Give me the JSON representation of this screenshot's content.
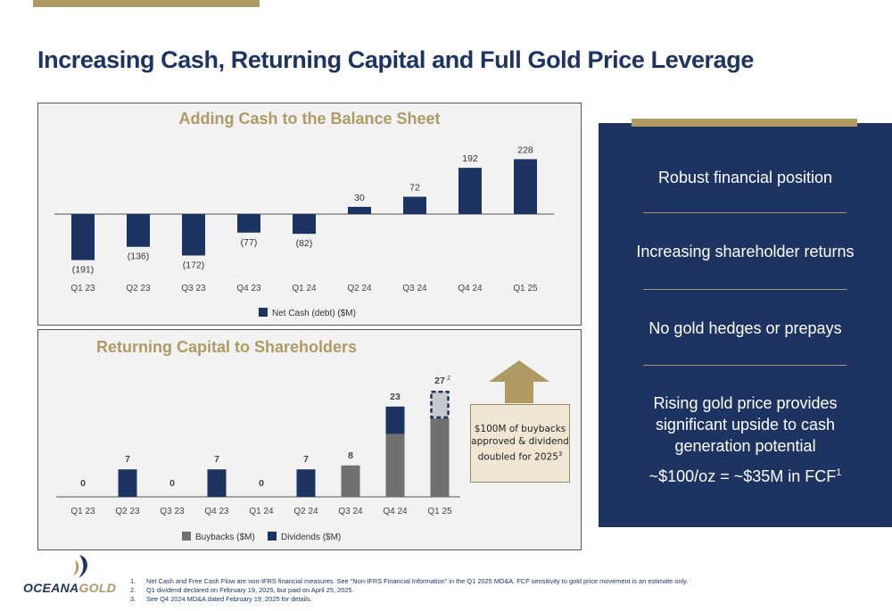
{
  "title": "Increasing Cash, Returning Capital and Full Gold Price Leverage",
  "colors": {
    "navy": "#1d3462",
    "gold": "#b09a64",
    "gray": "#707070"
  },
  "chart_data": [
    {
      "type": "bar",
      "title": "Adding Cash to the Balance Sheet",
      "categories": [
        "Q1 23",
        "Q2 23",
        "Q3 23",
        "Q4 23",
        "Q1 24",
        "Q2 24",
        "Q3 24",
        "Q4 24",
        "Q1 25"
      ],
      "series": [
        {
          "name": "Net Cash (debt) ($M)",
          "values": [
            -191,
            -136,
            -172,
            -77,
            -82,
            30,
            72,
            192,
            228
          ]
        }
      ],
      "value_labels": [
        "(191)",
        "(136)",
        "(172)",
        "(77)",
        "(82)",
        "30",
        "72",
        "192",
        "228"
      ],
      "legend": "bottom",
      "grid": false
    },
    {
      "type": "bar",
      "stacked": true,
      "title": "Returning Capital to Shareholders",
      "categories": [
        "Q1 23",
        "Q2 23",
        "Q3 23",
        "Q4 23",
        "Q1 24",
        "Q2 24",
        "Q3 24",
        "Q4 24",
        "Q1 25"
      ],
      "series": [
        {
          "name": "Buybacks ($M)",
          "values": [
            0,
            0,
            0,
            0,
            0,
            0,
            8,
            16,
            20
          ]
        },
        {
          "name": "Dividends ($M)",
          "values": [
            0,
            7,
            0,
            7,
            0,
            7,
            0,
            7,
            7
          ]
        }
      ],
      "totals": [
        "0",
        "7",
        "0",
        "7",
        "0",
        "7",
        "8",
        "23",
        "27"
      ],
      "total_superscripts": [
        "",
        "",
        "",
        "",
        "",
        "",
        "",
        "",
        "2"
      ],
      "legend": "bottom",
      "grid": false
    }
  ],
  "callout": {
    "text": "$100M of buybacks approved & dividend doubled for 2025",
    "sup": "3"
  },
  "highlights": [
    {
      "text": "Robust financial position"
    },
    {
      "text": "Increasing shareholder returns"
    },
    {
      "text": "No gold hedges or prepays"
    },
    {
      "text": "Rising gold price provides significant upside to cash generation potential"
    },
    {
      "text": "~$100/oz = ~$35M in FCF",
      "sup": "1"
    }
  ],
  "logo": {
    "part1": "OCEANA",
    "part2": "GOLD"
  },
  "footnotes": [
    {
      "num": "1.",
      "text": "Net Cash and Free Cash Flow are non-IFRS financial measures. See “Non-IFRS Financial Information” in the Q1 2025 MD&A. FCF sensitivity to gold price movement is an estimate only."
    },
    {
      "num": "2.",
      "text": "Q1 dividend declared on February 19, 2025, but paid on April 25, 2025."
    },
    {
      "num": "3.",
      "text": "See Q4 2024 MD&A dated February 19, 2025 for details."
    }
  ]
}
